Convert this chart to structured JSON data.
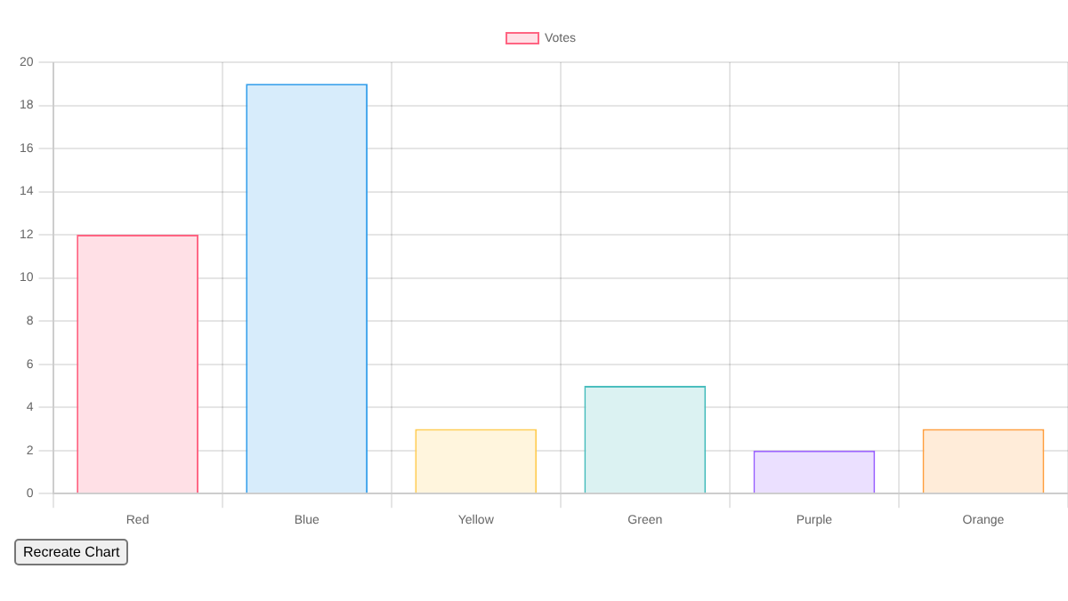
{
  "chart_data": {
    "type": "bar",
    "categories": [
      "Red",
      "Blue",
      "Yellow",
      "Green",
      "Purple",
      "Orange"
    ],
    "series": [
      {
        "name": "Votes",
        "values": [
          12,
          19,
          3,
          5,
          2,
          3
        ],
        "colors": [
          "#ffe0e6",
          "#d7ecfb",
          "#fff5dd",
          "#dbf2f2",
          "#ebe0ff",
          "#ffecd9"
        ]
      }
    ],
    "ylim": [
      0,
      20
    ],
    "yticks": [
      0,
      2,
      4,
      6,
      8,
      10,
      12,
      14,
      16,
      18,
      20
    ],
    "grid": true,
    "legend": "top",
    "annotations": [
      "Recreate Chart"
    ]
  }
}
